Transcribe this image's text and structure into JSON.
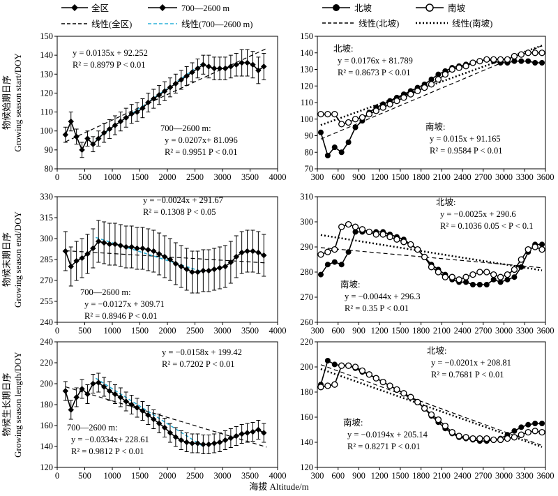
{
  "xlabel": "海拔 Altitude/m",
  "legends": {
    "left": {
      "row1": [
        "全区",
        "700—2600 m"
      ],
      "row2": [
        "线性(全区)",
        "线性(700—2600 m)"
      ]
    },
    "right": {
      "row1": [
        "北坡",
        "南坡"
      ],
      "row2": [
        "线性(北坡)",
        "线性(南坡)"
      ]
    }
  },
  "colors": {
    "all": "#000000",
    "mid": "#000000",
    "mid_fit": "#2ab0d8",
    "north": "#000000",
    "south": "#000000"
  },
  "chart_data": [
    {
      "id": "start_all",
      "type": "line",
      "row": 0,
      "col": 0,
      "ylabel_cn": "物候始期日序",
      "ylabel_en": "Growing season start/DOY",
      "xlim": [
        0,
        4000
      ],
      "ylim": [
        80,
        150
      ],
      "xticks": [
        0,
        500,
        1000,
        1500,
        2000,
        2500,
        3000,
        3500,
        4000
      ],
      "yticks": [
        80,
        90,
        100,
        110,
        120,
        130,
        140,
        150
      ],
      "x": [
        150,
        250,
        350,
        450,
        550,
        650,
        750,
        850,
        950,
        1050,
        1150,
        1250,
        1350,
        1450,
        1550,
        1650,
        1750,
        1850,
        1950,
        2050,
        2150,
        2250,
        2350,
        2450,
        2550,
        2650,
        2750,
        2850,
        2950,
        3050,
        3150,
        3250,
        3350,
        3450,
        3550,
        3650,
        3750
      ],
      "series": [
        {
          "name": "全区",
          "values": [
            98,
            105,
            97,
            90,
            96,
            93,
            96,
            99,
            101,
            103,
            105,
            107,
            109,
            110,
            112,
            115,
            117,
            119,
            121,
            123,
            125,
            127,
            129,
            131,
            133,
            135,
            134,
            133,
            133,
            133,
            134,
            135,
            136,
            136,
            135,
            132,
            134
          ],
          "err": [
            4,
            5,
            4,
            4,
            4,
            4,
            4,
            5,
            5,
            5,
            5,
            5,
            5,
            5,
            5,
            5,
            5,
            5,
            5,
            5,
            5,
            5,
            5,
            5,
            5,
            5,
            6,
            6,
            6,
            6,
            6,
            6,
            7,
            7,
            7,
            7,
            7
          ]
        }
      ],
      "fits": [
        {
          "name": "线性(全区)",
          "slope": 0.0135,
          "intercept": 92.252,
          "x_range": [
            150,
            3800
          ],
          "style": "dash"
        },
        {
          "name": "线性(700—2600 m)",
          "slope": 0.0207,
          "intercept": 81.096,
          "x_range": [
            700,
            2650
          ],
          "style": "cyan-dash"
        }
      ],
      "annotations": [
        {
          "lines": [
            "y = 0.0135x + 92.252",
            "R² = 0.8979     P < 0.01"
          ]
        },
        {
          "lines": [
            "700—2600 m:",
            "y = 0.0207x+ 81.096",
            "R² = 0.9951     P < 0.01"
          ]
        }
      ]
    },
    {
      "id": "start_slope",
      "type": "line",
      "row": 0,
      "col": 1,
      "xlim": [
        300,
        3600
      ],
      "ylim": [
        70,
        150
      ],
      "xticks": [
        300,
        600,
        900,
        1200,
        1500,
        1800,
        2100,
        2400,
        2700,
        3000,
        3300,
        3600
      ],
      "yticks": [
        70,
        80,
        90,
        100,
        110,
        120,
        130,
        140,
        150
      ],
      "x": [
        350,
        450,
        550,
        650,
        750,
        850,
        950,
        1050,
        1150,
        1250,
        1350,
        1450,
        1550,
        1650,
        1750,
        1850,
        1950,
        2050,
        2150,
        2250,
        2350,
        2450,
        2550,
        2650,
        2750,
        2850,
        2950,
        3050,
        3150,
        3250,
        3350,
        3450,
        3550
      ],
      "series": [
        {
          "name": "北坡",
          "values": [
            92,
            78,
            83,
            80,
            86,
            95,
            99,
            104,
            107,
            109,
            111,
            113,
            115,
            117,
            119,
            121,
            124,
            127,
            129,
            131,
            132,
            133,
            134,
            135,
            136,
            135,
            134,
            134,
            135,
            135,
            135,
            134,
            134
          ],
          "marker": "filled"
        },
        {
          "name": "南坡",
          "values": [
            103,
            103,
            103,
            97,
            98,
            100,
            101,
            103,
            105,
            107,
            109,
            111,
            113,
            115,
            117,
            119,
            121,
            124,
            127,
            130,
            131,
            132,
            134,
            135,
            136,
            136,
            136,
            136,
            138,
            139,
            140,
            140,
            140
          ],
          "marker": "open"
        }
      ],
      "fits": [
        {
          "name": "线性(北坡)",
          "slope": 0.0176,
          "intercept": 81.789,
          "x_range": [
            350,
            3550
          ],
          "style": "dash"
        },
        {
          "name": "线性(南坡)",
          "slope": 0.015,
          "intercept": 91.165,
          "x_range": [
            350,
            3550
          ],
          "style": "dot"
        }
      ],
      "annotations": [
        {
          "lines": [
            "北坡:",
            "y = 0.0176x + 81.789",
            "R² = 0.8673      P < 0.01"
          ]
        },
        {
          "lines": [
            "南坡:",
            "y = 0.015x +  91.165",
            "R² = 0.9584     P < 0.01"
          ]
        }
      ]
    },
    {
      "id": "end_all",
      "type": "line",
      "row": 1,
      "col": 0,
      "ylabel_cn": "物候末期日序",
      "ylabel_en": "Growing season end/DOY",
      "xlim": [
        0,
        4000
      ],
      "ylim": [
        240,
        330
      ],
      "xticks": [
        0,
        500,
        1000,
        1500,
        2000,
        2500,
        3000,
        3500,
        4000
      ],
      "yticks": [
        240,
        255,
        270,
        285,
        300,
        315,
        330
      ],
      "x": [
        150,
        250,
        350,
        450,
        550,
        650,
        750,
        850,
        950,
        1050,
        1150,
        1250,
        1350,
        1450,
        1550,
        1650,
        1750,
        1850,
        1950,
        2050,
        2150,
        2250,
        2350,
        2450,
        2550,
        2650,
        2750,
        2850,
        2950,
        3050,
        3150,
        3250,
        3350,
        3450,
        3550,
        3650,
        3750
      ],
      "series": [
        {
          "name": "全区",
          "values": [
            291,
            280,
            284,
            286,
            289,
            293,
            298,
            297,
            296,
            296,
            295,
            294,
            294,
            293,
            293,
            292,
            291,
            289,
            287,
            285,
            282,
            280,
            278,
            276,
            276,
            277,
            277,
            278,
            279,
            280,
            283,
            287,
            290,
            291,
            291,
            290,
            288
          ],
          "err": [
            14,
            14,
            14,
            14,
            14,
            14,
            15,
            15,
            15,
            15,
            15,
            15,
            15,
            15,
            15,
            15,
            15,
            15,
            15,
            15,
            15,
            15,
            15,
            15,
            15,
            15,
            15,
            15,
            15,
            15,
            15,
            15,
            15,
            15,
            15,
            15,
            15
          ]
        }
      ],
      "fits": [
        {
          "name": "线性(全区)",
          "slope": -0.0024,
          "intercept": 291.67,
          "x_range": [
            150,
            3800
          ],
          "style": "dash"
        },
        {
          "name": "线性(700—2600 m)",
          "slope": -0.0127,
          "intercept": 309.71,
          "x_range": [
            700,
            2650
          ],
          "style": "cyan-dash"
        }
      ],
      "annotations": [
        {
          "lines": [
            "y = −0.0024x + 291.67",
            "R² = 0.1308     P < 0.05"
          ]
        },
        {
          "lines": [
            "700—2600 m:",
            "y = −0.0127x + 309.71",
            "R² = 0.8946     P < 0.01"
          ]
        }
      ]
    },
    {
      "id": "end_slope",
      "type": "line",
      "row": 1,
      "col": 1,
      "xlim": [
        300,
        3600
      ],
      "ylim": [
        260,
        310
      ],
      "xticks": [
        300,
        600,
        900,
        1200,
        1500,
        1800,
        2100,
        2400,
        2700,
        3000,
        3300,
        3600
      ],
      "yticks": [
        260,
        270,
        280,
        290,
        300,
        310
      ],
      "x": [
        350,
        450,
        550,
        650,
        750,
        850,
        950,
        1050,
        1150,
        1250,
        1350,
        1450,
        1550,
        1650,
        1750,
        1850,
        1950,
        2050,
        2150,
        2250,
        2350,
        2450,
        2550,
        2650,
        2750,
        2850,
        2950,
        3050,
        3150,
        3250,
        3350,
        3450,
        3550
      ],
      "series": [
        {
          "name": "北坡",
          "values": [
            279,
            283,
            284,
            283,
            288,
            296,
            296,
            296,
            296,
            296,
            295,
            294,
            293,
            291,
            289,
            286,
            283,
            281,
            279,
            277,
            276,
            276,
            275,
            275,
            275,
            277,
            276,
            277,
            278,
            282,
            288,
            291,
            291
          ],
          "marker": "filled"
        },
        {
          "name": "南坡",
          "values": [
            287,
            288,
            289,
            298,
            299,
            298,
            297,
            296,
            295,
            295,
            294,
            293,
            292,
            291,
            289,
            286,
            282,
            280,
            278,
            278,
            277,
            278,
            279,
            280,
            280,
            279,
            278,
            279,
            281,
            285,
            289,
            290,
            289
          ],
          "marker": "open"
        }
      ],
      "fits": [
        {
          "name": "线性(北坡)",
          "slope": -0.0025,
          "intercept": 290.6,
          "x_range": [
            350,
            3550
          ],
          "style": "dash"
        },
        {
          "name": "线性(南坡)",
          "slope": -0.0044,
          "intercept": 296.3,
          "x_range": [
            350,
            3550
          ],
          "style": "dot"
        }
      ],
      "annotations": [
        {
          "lines": [
            "北坡:",
            "y = −0.0025x + 290.6",
            "R² = 0.1036     0.05 < P < 0.1"
          ]
        },
        {
          "lines": [
            "南坡:",
            "y = −0.0044x + 296.3",
            "R² = 0.35       P < 0.01"
          ]
        }
      ]
    },
    {
      "id": "length_all",
      "type": "line",
      "row": 2,
      "col": 0,
      "ylabel_cn": "物候生长期日序",
      "ylabel_en": "Growing season length/DOY",
      "xlim": [
        0,
        4000
      ],
      "ylim": [
        120,
        240
      ],
      "xticks": [
        0,
        500,
        1000,
        1500,
        2000,
        2500,
        3000,
        3500,
        4000
      ],
      "yticks": [
        120,
        140,
        160,
        180,
        200,
        220,
        240
      ],
      "x": [
        150,
        250,
        350,
        450,
        550,
        650,
        750,
        850,
        950,
        1050,
        1150,
        1250,
        1350,
        1450,
        1550,
        1650,
        1750,
        1850,
        1950,
        2050,
        2150,
        2250,
        2350,
        2450,
        2550,
        2650,
        2750,
        2850,
        2950,
        3050,
        3150,
        3250,
        3350,
        3450,
        3550,
        3650,
        3750
      ],
      "series": [
        {
          "name": "全区",
          "values": [
            193,
            175,
            187,
            195,
            190,
            200,
            201,
            197,
            193,
            190,
            187,
            183,
            180,
            177,
            174,
            170,
            166,
            162,
            158,
            153,
            149,
            146,
            144,
            143,
            143,
            142,
            142,
            143,
            144,
            146,
            148,
            150,
            152,
            153,
            154,
            156,
            153
          ],
          "err": [
            9,
            9,
            9,
            9,
            9,
            9,
            9,
            9,
            9,
            9,
            9,
            9,
            9,
            9,
            9,
            9,
            9,
            9,
            9,
            9,
            9,
            9,
            9,
            9,
            9,
            9,
            9,
            9,
            9,
            9,
            9,
            9,
            9,
            9,
            9,
            9,
            9
          ]
        }
      ],
      "fits": [
        {
          "name": "线性(全区)",
          "slope": -0.0158,
          "intercept": 199.42,
          "x_range": [
            150,
            3800
          ],
          "style": "dash"
        },
        {
          "name": "线性(700—2600 m)",
          "slope": -0.0334,
          "intercept": 228.61,
          "x_range": [
            700,
            2650
          ],
          "style": "cyan-dash"
        }
      ],
      "annotations": [
        {
          "lines": [
            "y = −0.0158x + 199.42",
            "R² = 0.7202     P < 0.01"
          ]
        },
        {
          "lines": [
            "700—2600 m:",
            "y = −0.0334x+ 228.61",
            "R² = 0.9812     P < 0.01"
          ]
        }
      ]
    },
    {
      "id": "length_slope",
      "type": "line",
      "row": 2,
      "col": 1,
      "xlim": [
        300,
        3600
      ],
      "ylim": [
        120,
        220
      ],
      "xticks": [
        300,
        600,
        900,
        1200,
        1500,
        1800,
        2100,
        2400,
        2700,
        3000,
        3300,
        3600
      ],
      "yticks": [
        120,
        140,
        160,
        180,
        200,
        220
      ],
      "x": [
        350,
        450,
        550,
        650,
        750,
        850,
        950,
        1050,
        1150,
        1250,
        1350,
        1450,
        1550,
        1650,
        1750,
        1850,
        1950,
        2050,
        2150,
        2250,
        2350,
        2450,
        2550,
        2650,
        2750,
        2850,
        2950,
        3050,
        3150,
        3250,
        3350,
        3450,
        3550
      ],
      "series": [
        {
          "name": "北坡",
          "values": [
            186,
            205,
            202,
            201,
            201,
            199,
            196,
            194,
            191,
            188,
            185,
            182,
            179,
            176,
            172,
            167,
            161,
            156,
            151,
            147,
            144,
            143,
            142,
            141,
            141,
            142,
            143,
            146,
            149,
            152,
            154,
            155,
            155
          ],
          "marker": "filled"
        },
        {
          "name": "南坡",
          "values": [
            184,
            185,
            186,
            201,
            201,
            200,
            197,
            194,
            191,
            188,
            185,
            182,
            179,
            176,
            172,
            167,
            162,
            158,
            153,
            148,
            145,
            144,
            143,
            143,
            143,
            142,
            142,
            143,
            144,
            146,
            148,
            149,
            148
          ],
          "marker": "open"
        }
      ],
      "fits": [
        {
          "name": "线性(北坡)",
          "slope": -0.0201,
          "intercept": 208.81,
          "x_range": [
            350,
            3550
          ],
          "style": "dash"
        },
        {
          "name": "线性(南坡)",
          "slope": -0.0194,
          "intercept": 205.14,
          "x_range": [
            350,
            3550
          ],
          "style": "dot"
        }
      ],
      "annotations": [
        {
          "lines": [
            "北坡:",
            "y = −0.0201x + 208.81",
            "R² = 0.7681     P < 0.01"
          ]
        },
        {
          "lines": [
            "南坡:",
            "y = −0.0194x + 205.14",
            "R² = 0.8271     P < 0.01"
          ]
        }
      ]
    }
  ]
}
